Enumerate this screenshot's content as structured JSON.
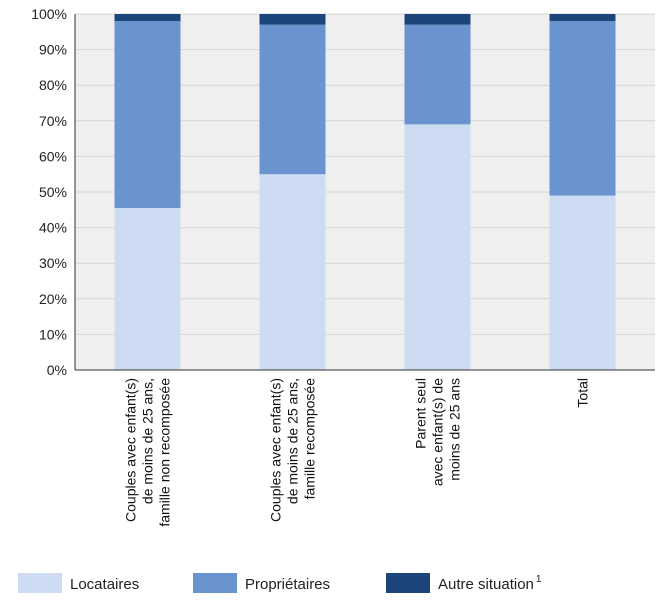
{
  "chart_data": {
    "type": "bar",
    "stacked": true,
    "categories": [
      [
        "Couples avec enfant(s)",
        "de moins de 25 ans,",
        "famille non recomposée"
      ],
      [
        "Couples avec enfant(s)",
        "de moins de 25 ans,",
        "famille recomposée"
      ],
      [
        "Parent seul",
        "avec enfant(s) de",
        "moins de 25 ans"
      ],
      [
        "Total"
      ]
    ],
    "series": [
      {
        "name": "Locataires",
        "values": [
          45.5,
          55,
          69,
          49
        ],
        "color": "#cddcf2"
      },
      {
        "name": "Propriétaires",
        "values": [
          52.5,
          42,
          28,
          49
        ],
        "color": "#6a94cf"
      },
      {
        "name": "Autre situation",
        "name_sup": "1",
        "values": [
          2,
          3,
          3,
          2
        ],
        "color": "#1c4679"
      }
    ],
    "ylim": [
      0,
      100
    ],
    "yticks": [
      "0%",
      "10%",
      "20%",
      "30%",
      "40%",
      "50%",
      "60%",
      "70%",
      "80%",
      "90%",
      "100%"
    ],
    "grid": true,
    "plot_background": "#efefef",
    "legend_position": "bottom"
  }
}
